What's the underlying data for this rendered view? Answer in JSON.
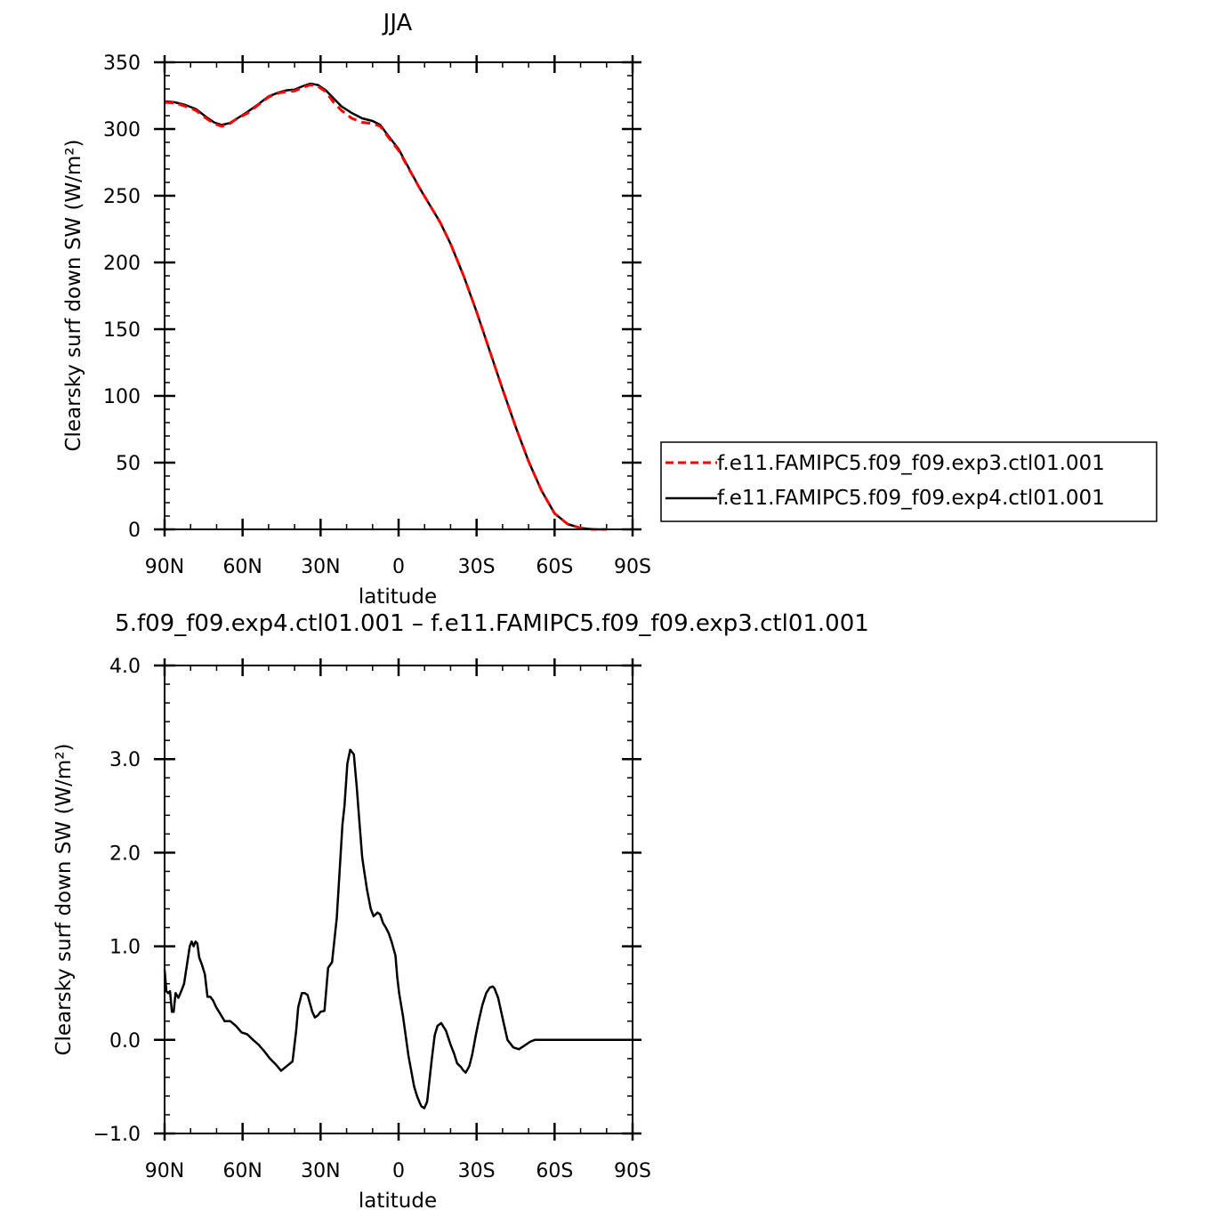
{
  "chart_data": [
    {
      "type": "line",
      "title": "JJA",
      "xlabel": "latitude",
      "ylabel": "Clearsky surf down SW (W/m²)",
      "xlim": [
        90,
        -90
      ],
      "x_ticks": [
        90,
        60,
        30,
        0,
        -30,
        -60,
        -90
      ],
      "x_tick_labels": [
        "90N",
        "60N",
        "30N",
        "0",
        "30S",
        "60S",
        "90S"
      ],
      "ylim": [
        0,
        350
      ],
      "y_ticks": [
        0,
        50,
        100,
        150,
        200,
        250,
        300,
        350
      ],
      "y_tick_labels": [
        "0",
        "50",
        "100",
        "150",
        "200",
        "250",
        "300",
        "350"
      ],
      "grid": false,
      "legend_position": "right",
      "series": [
        {
          "name": "f.e11.FAMIPC5.f09_f09.exp3.ctl01.001",
          "color": "#ff0000",
          "dash": "dashed",
          "x": [
            90,
            86,
            82,
            78,
            74,
            71,
            68,
            65,
            62,
            58,
            54,
            50,
            46,
            43,
            40,
            37,
            34,
            31,
            28,
            25,
            22,
            18,
            14,
            10,
            7,
            4,
            0,
            -4,
            -8,
            -12,
            -16,
            -20,
            -25,
            -30,
            -35,
            -40,
            -45,
            -50,
            -55,
            -60,
            -65,
            -70,
            -75,
            -80
          ],
          "y": [
            320,
            319.5,
            317,
            314,
            308,
            304,
            302,
            304,
            308,
            312,
            318,
            324,
            327,
            328,
            328.5,
            331,
            333,
            332,
            328,
            320,
            314,
            308,
            305,
            304,
            302,
            294,
            284,
            270,
            256,
            243,
            230,
            214,
            190,
            163,
            134,
            105,
            77,
            51,
            29,
            12,
            4,
            1,
            0,
            0
          ]
        },
        {
          "name": "f.e11.FAMIPC5.f09_f09.exp4.ctl01.001",
          "color": "#000000",
          "dash": "solid",
          "x": [
            90,
            86,
            82,
            78,
            74,
            71,
            68,
            65,
            62,
            58,
            54,
            50,
            46,
            43,
            40,
            37,
            34,
            31,
            28,
            25,
            22,
            18,
            14,
            10,
            7,
            4,
            0,
            -4,
            -8,
            -12,
            -16,
            -20,
            -25,
            -30,
            -35,
            -40,
            -45,
            -50,
            -55,
            -60,
            -65,
            -70,
            -75,
            -80
          ],
          "y": [
            320.7,
            320,
            318,
            315,
            309,
            305,
            303,
            304.5,
            308,
            313,
            318.5,
            324.5,
            327.5,
            329,
            329.5,
            332,
            334,
            333,
            329,
            323,
            317,
            312,
            308,
            306,
            303,
            295,
            285,
            270.5,
            256,
            243,
            230,
            214,
            190,
            163,
            134,
            105,
            77,
            51,
            29,
            12,
            4,
            1,
            0,
            0
          ]
        }
      ]
    },
    {
      "type": "line",
      "title": "5.f09_f09.exp4.ctl01.001 – f.e11.FAMIPC5.f09_f09.exp3.ctl01.001",
      "xlabel": "latitude",
      "ylabel": "Clearsky surf down SW (W/m²)",
      "xlim": [
        90,
        -90
      ],
      "x_ticks": [
        90,
        60,
        30,
        0,
        -30,
        -60,
        -90
      ],
      "x_tick_labels": [
        "90N",
        "60N",
        "30N",
        "0",
        "30S",
        "60S",
        "90S"
      ],
      "ylim": [
        -1.0,
        4.0
      ],
      "y_ticks": [
        -1.0,
        0.0,
        1.0,
        2.0,
        3.0,
        4.0
      ],
      "y_tick_labels": [
        "−1.0",
        "0.0",
        "1.0",
        "2.0",
        "3.0",
        "4.0"
      ],
      "grid": false,
      "series": [
        {
          "color": "#000000",
          "dash": "solid",
          "x": [
            90,
            89.3,
            88.6,
            87.9,
            87.2,
            86.5,
            85.8,
            84.7,
            83.6,
            82.5,
            81.4,
            80.3,
            79.6,
            78.8,
            78.1,
            77.4,
            76.7,
            75.6,
            74.5,
            73.5,
            72.4,
            71.3,
            70.2,
            69.1,
            68.0,
            66.9,
            64.7,
            62.6,
            60.4,
            58.2,
            56.0,
            53.9,
            51.7,
            49.5,
            47.3,
            45.2,
            43.0,
            40.8,
            39.4,
            38.6,
            37.2,
            36.1,
            35.0,
            33.2,
            32.2,
            31.1,
            30.0,
            28.5,
            27.1,
            25.6,
            23.8,
            22.7,
            21.6,
            20.8,
            19.7,
            18.6,
            17.2,
            16.1,
            15.0,
            14.0,
            13.2,
            12.1,
            10.7,
            9.6,
            8.1,
            7.1,
            6.0,
            4.9,
            3.8,
            2.7,
            1.2,
            0.5,
            -0.2,
            -1.7,
            -3.8,
            -6.0,
            -7.1,
            -8.1,
            -8.8,
            -9.9,
            -11.0,
            -11.8,
            -12.8,
            -13.9,
            -15.0,
            -16.4,
            -18.2,
            -20.0,
            -21.4,
            -22.5,
            -24.0,
            -24.7,
            -25.8,
            -27.2,
            -28.3,
            -29.7,
            -30.8,
            -32.2,
            -33.7,
            -35.1,
            -36.2,
            -36.9,
            -38.3,
            -40.1,
            -41.9,
            -44.1,
            -46.3,
            -48.5,
            -50.6,
            -52.4,
            -54.2,
            -56.0,
            -57.5,
            -58.9,
            -60.4,
            -61.5,
            -62.9,
            -65.1,
            -67.3,
            -69.4,
            -71.6,
            -73.8,
            -76.0,
            -78.1,
            -80.3,
            -82.5,
            -84.7,
            -86.8,
            -89.0,
            -90.0
          ],
          "y": [
            0.75,
            0.52,
            0.5,
            0.52,
            0.3,
            0.3,
            0.5,
            0.45,
            0.52,
            0.6,
            0.8,
            1.0,
            1.05,
            1.0,
            1.05,
            1.03,
            0.88,
            0.8,
            0.7,
            0.46,
            0.46,
            0.42,
            0.35,
            0.3,
            0.25,
            0.2,
            0.2,
            0.15,
            0.08,
            0.06,
            0.0,
            -0.05,
            -0.12,
            -0.2,
            -0.26,
            -0.33,
            -0.28,
            -0.23,
            0.1,
            0.35,
            0.5,
            0.5,
            0.48,
            0.3,
            0.24,
            0.26,
            0.3,
            0.31,
            0.77,
            0.83,
            1.3,
            1.8,
            2.3,
            2.5,
            2.95,
            3.1,
            3.05,
            2.7,
            2.3,
            1.95,
            1.8,
            1.6,
            1.4,
            1.32,
            1.36,
            1.34,
            1.25,
            1.2,
            1.14,
            1.05,
            0.9,
            0.67,
            0.5,
            0.25,
            -0.17,
            -0.5,
            -0.6,
            -0.67,
            -0.71,
            -0.73,
            -0.66,
            -0.45,
            -0.2,
            0.05,
            0.15,
            0.18,
            0.1,
            -0.05,
            -0.15,
            -0.25,
            -0.29,
            -0.32,
            -0.35,
            -0.28,
            -0.16,
            0.05,
            0.2,
            0.37,
            0.5,
            0.56,
            0.57,
            0.55,
            0.45,
            0.22,
            0.0,
            -0.08,
            -0.1,
            -0.06,
            -0.02,
            0.0,
            0.0,
            0.0,
            0.0,
            0.0,
            0.0,
            0.0,
            0.0,
            0.0,
            0.0,
            0.0,
            0.0,
            0.0,
            0.0,
            0.0,
            0.0,
            0.0,
            0.0,
            0.0,
            0.0,
            0.0
          ]
        }
      ]
    }
  ]
}
